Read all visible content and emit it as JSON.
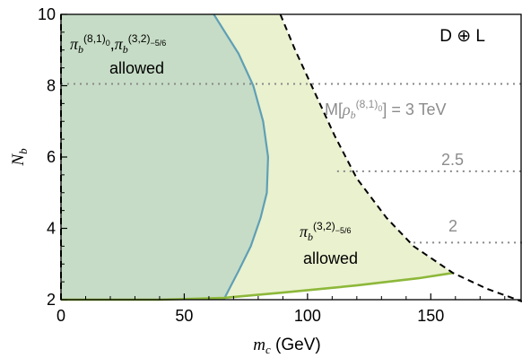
{
  "chart_data": {
    "type": "area",
    "xlabel": "m_c (GeV)",
    "xlabel_var": "m",
    "xlabel_sub": "c",
    "xlabel_unit": " (GeV)",
    "ylabel": "N_b",
    "ylabel_var": "N",
    "ylabel_sub": "b",
    "xlim": [
      0,
      187
    ],
    "ylim": [
      2,
      10
    ],
    "xticks": [
      0,
      50,
      100,
      150
    ],
    "yticks": [
      2,
      4,
      6,
      8,
      10
    ],
    "grid": false,
    "corner_label": "D ⊕ L",
    "colors": {
      "blue_region": "#c6dcc6",
      "blue_boundary": "#5f9fb5",
      "green_region": "#eaf1cf",
      "green_boundary": "#8db83a",
      "black_dashed": "#000000",
      "gray_dotted": "#888888"
    },
    "regions": [
      {
        "name": "π_b^(8,1)_0, π_b^(3,2)_-5/6 allowed",
        "boundary": [
          [
            62,
            10
          ],
          [
            72,
            8.9
          ],
          [
            78,
            8
          ],
          [
            82,
            7
          ],
          [
            84,
            6
          ],
          [
            83.5,
            5
          ],
          [
            81,
            4.3
          ],
          [
            77,
            3.5
          ],
          [
            72,
            2.8
          ],
          [
            66,
            2
          ]
        ]
      },
      {
        "name": "π_b^(3,2)_-5/6 allowed",
        "upper_boundary": [
          [
            89,
            10
          ],
          [
            95,
            9
          ],
          [
            103,
            7.8
          ],
          [
            111,
            6.6
          ],
          [
            120,
            5.4
          ],
          [
            132,
            4.3
          ],
          [
            143,
            3.5
          ],
          [
            159,
            2.75
          ]
        ],
        "lower_boundary": [
          [
            0,
            2
          ],
          [
            40,
            2
          ],
          [
            66,
            2.05
          ],
          [
            90,
            2.2
          ],
          [
            120,
            2.4
          ],
          [
            145,
            2.6
          ],
          [
            159,
            2.75
          ]
        ]
      }
    ],
    "series": [
      {
        "name": "black dashed",
        "points": [
          [
            89,
            10
          ],
          [
            95,
            9
          ],
          [
            103,
            7.8
          ],
          [
            111,
            6.6
          ],
          [
            120,
            5.4
          ],
          [
            132,
            4.3
          ],
          [
            143,
            3.5
          ],
          [
            159,
            2.75
          ],
          [
            173,
            2.3
          ],
          [
            187,
            1.95
          ]
        ]
      }
    ],
    "mass_lines": [
      {
        "N": 8.05,
        "label": "M[ρ_b^(8,1)_0] = 3 TeV",
        "x_start": 0
      },
      {
        "N": 5.6,
        "label": "2.5",
        "x_start": 112
      },
      {
        "N": 3.6,
        "label": "2",
        "x_start": 143
      }
    ],
    "labels": {
      "region1_title": "π_b^(8,1)_0,π_b^(3,2)_-5/6",
      "region1_allowed": "allowed",
      "region2_title": "π_b^(3,2)_-5/6",
      "region2_allowed": "allowed"
    }
  }
}
